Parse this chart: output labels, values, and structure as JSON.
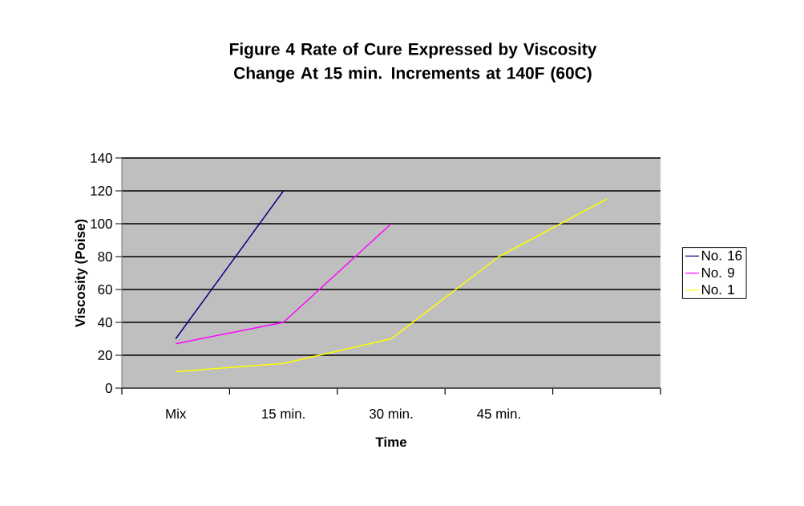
{
  "chart_data": {
    "type": "line",
    "title": "Figure 4 Rate of Cure Expressed by Viscosity Change At 15 min. Increments at 140F (60C)",
    "xlabel": "Time",
    "ylabel": "Viscosity (Poise)",
    "categories": [
      "Mix",
      "15 min.",
      "30 min.",
      "45 min.",
      null
    ],
    "series": [
      {
        "name": "No. 16",
        "color": "#000080",
        "values": [
          30,
          120,
          null,
          null,
          null
        ]
      },
      {
        "name": "No. 9",
        "color": "#ff00ff",
        "values": [
          27,
          40,
          100,
          null,
          null
        ]
      },
      {
        "name": "No. 1",
        "color": "#ffff00",
        "values": [
          10,
          15,
          30,
          80,
          115
        ]
      }
    ],
    "ylim": [
      0,
      140
    ],
    "yticks": [
      0,
      20,
      40,
      60,
      80,
      100,
      120,
      140
    ],
    "grid": "y",
    "legend": "right",
    "marker": "none",
    "line_style": "solid"
  }
}
